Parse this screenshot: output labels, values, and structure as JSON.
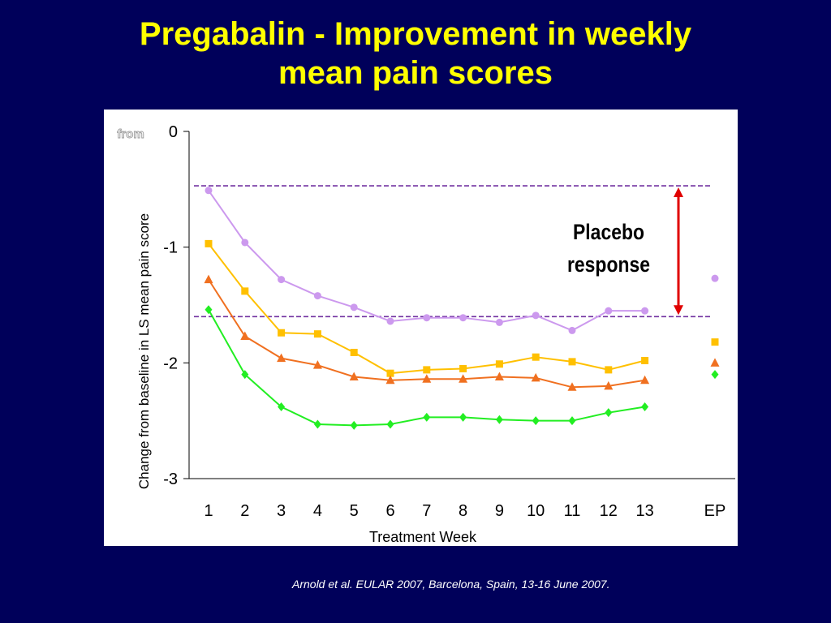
{
  "slide": {
    "title_line1": "Pregabalin - Improvement in weekly",
    "title_line2": "mean pain scores",
    "citation": "Arnold  et al. EULAR 2007, Barcelona, Spain, 13-16 June 2007."
  },
  "colors": {
    "background": "#00005a",
    "title": "#ffff00",
    "placebo": "#cc99ee",
    "yellow_series": "#ffc000",
    "orange_series": "#f07020",
    "green_series": "#22ee22",
    "reference_line": "#7030a0",
    "arrow": "#e00000"
  },
  "chart_data": {
    "type": "line",
    "xlabel": "Treatment Week",
    "ylabel": "Change from baseline in LS mean pain score",
    "ylabel_fragment": "from",
    "categories": [
      "1",
      "2",
      "3",
      "4",
      "5",
      "6",
      "7",
      "8",
      "9",
      "10",
      "11",
      "12",
      "13"
    ],
    "endpoint_label": "EP",
    "ylim": [
      -3,
      0
    ],
    "yticks": [
      "0",
      "-1",
      "-2",
      "-3"
    ],
    "grid": false,
    "legend": "none",
    "annotation": {
      "line1": "Placebo",
      "line2": "response",
      "upper_reference_y": -0.47,
      "lower_reference_y": -1.6
    },
    "series": [
      {
        "color_key": "placebo",
        "marker": "circle",
        "values": [
          -0.51,
          -0.96,
          -1.28,
          -1.42,
          -1.52,
          -1.64,
          -1.61,
          -1.61,
          -1.65,
          -1.59,
          -1.72,
          -1.55,
          -1.55
        ],
        "endpoint": -1.27
      },
      {
        "color_key": "yellow_series",
        "marker": "square",
        "values": [
          -0.97,
          -1.38,
          -1.74,
          -1.75,
          -1.91,
          -2.09,
          -2.06,
          -2.05,
          -2.01,
          -1.95,
          -1.99,
          -2.06,
          -1.98
        ],
        "endpoint": -1.82
      },
      {
        "color_key": "orange_series",
        "marker": "triangle",
        "values": [
          -1.28,
          -1.77,
          -1.96,
          -2.02,
          -2.12,
          -2.15,
          -2.14,
          -2.14,
          -2.12,
          -2.13,
          -2.21,
          -2.2,
          -2.15
        ],
        "endpoint": -2.0
      },
      {
        "color_key": "green_series",
        "marker": "diamond",
        "values": [
          -1.54,
          -2.1,
          -2.38,
          -2.53,
          -2.54,
          -2.53,
          -2.47,
          -2.47,
          -2.49,
          -2.5,
          -2.5,
          -2.43,
          -2.38
        ],
        "endpoint": -2.1
      }
    ]
  }
}
